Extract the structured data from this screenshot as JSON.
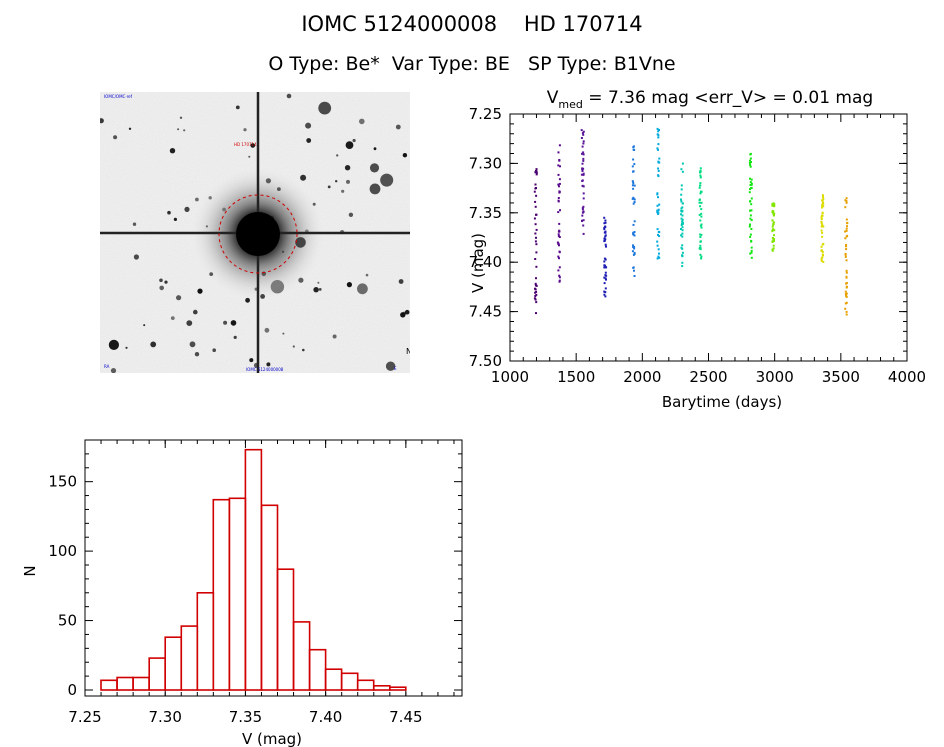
{
  "header": {
    "title_line1": "IOMC 5124000008    HD 170714",
    "title_line2": "O Type: Be*  Var Type: BE   SP Type: B1Vne"
  },
  "colors": {
    "histogram_bar": "#d10000",
    "axis": "#000000",
    "finder_circle": "#d10000",
    "finder_labels": "#0000cc"
  },
  "finder_chart": {
    "label_top_left": "IOMC/OMC·ref",
    "label_center_red": "HD 170714",
    "label_bottom_left": "RA",
    "label_bottom_center": "IOMC 5124000008",
    "label_bottom_right": "E",
    "compass": "N"
  },
  "chart_data": [
    {
      "type": "scatter",
      "title_prefix": "V",
      "title_subscript": "med",
      "title_rest": " = 7.36 mag <err_V> = 0.01 mag",
      "xlabel": "Barytime (days)",
      "ylabel": "V (mag)",
      "xlim": [
        1000,
        4000
      ],
      "ylim": [
        7.25,
        7.5
      ],
      "y_inverted": true,
      "x_ticks": [
        1000,
        1500,
        2000,
        2500,
        3000,
        3500,
        4000
      ],
      "x_tick_labels": [
        "1000",
        "1500",
        "2000",
        "2500",
        "3000",
        "3500",
        "4000"
      ],
      "y_ticks": [
        7.25,
        7.3,
        7.35,
        7.4,
        7.45,
        7.5
      ],
      "y_tick_labels": [
        "7.25",
        "7.30",
        "7.35",
        "7.40",
        "7.45",
        "7.50"
      ],
      "color_scale": "rainbow (purple to orange with time)",
      "groups": [
        {
          "x": 1195,
          "y_min": 7.305,
          "y_max": 7.455,
          "color": "#4b0070"
        },
        {
          "x": 1370,
          "y_min": 7.28,
          "y_max": 7.42,
          "color": "#5a0a8c"
        },
        {
          "x": 1550,
          "y_min": 7.265,
          "y_max": 7.375,
          "color": "#5a1498"
        },
        {
          "x": 1720,
          "y_min": 7.355,
          "y_max": 7.44,
          "color": "#1e1eb4"
        },
        {
          "x": 1935,
          "y_min": 7.28,
          "y_max": 7.42,
          "color": "#1e78dc"
        },
        {
          "x": 2120,
          "y_min": 7.26,
          "y_max": 7.4,
          "color": "#00aadc"
        },
        {
          "x": 2300,
          "y_min": 7.3,
          "y_max": 7.41,
          "color": "#00c8b4"
        },
        {
          "x": 2440,
          "y_min": 7.3,
          "y_max": 7.4,
          "color": "#00dc82"
        },
        {
          "x": 2820,
          "y_min": 7.29,
          "y_max": 7.4,
          "color": "#14e614"
        },
        {
          "x": 2990,
          "y_min": 7.34,
          "y_max": 7.39,
          "color": "#82e600"
        },
        {
          "x": 3360,
          "y_min": 7.33,
          "y_max": 7.4,
          "color": "#dcdc00"
        },
        {
          "x": 3540,
          "y_min": 7.335,
          "y_max": 7.465,
          "color": "#e6a000"
        }
      ]
    },
    {
      "type": "bar",
      "subtype": "histogram",
      "xlabel": "V (mag)",
      "ylabel": "N",
      "xlim": [
        7.25,
        7.485
      ],
      "ylim": [
        0,
        180
      ],
      "x_ticks": [
        7.25,
        7.3,
        7.35,
        7.4,
        7.45
      ],
      "x_tick_labels": [
        "7.25",
        "7.30",
        "7.35",
        "7.40",
        "7.45"
      ],
      "y_ticks": [
        0,
        50,
        100,
        150
      ],
      "y_tick_labels": [
        "0",
        "50",
        "100",
        "150"
      ],
      "bin_start": 7.26,
      "bin_width": 0.01,
      "values": [
        7,
        9,
        9,
        23,
        38,
        46,
        70,
        137,
        138,
        173,
        133,
        87,
        49,
        29,
        15,
        12,
        7,
        3,
        2
      ]
    }
  ]
}
